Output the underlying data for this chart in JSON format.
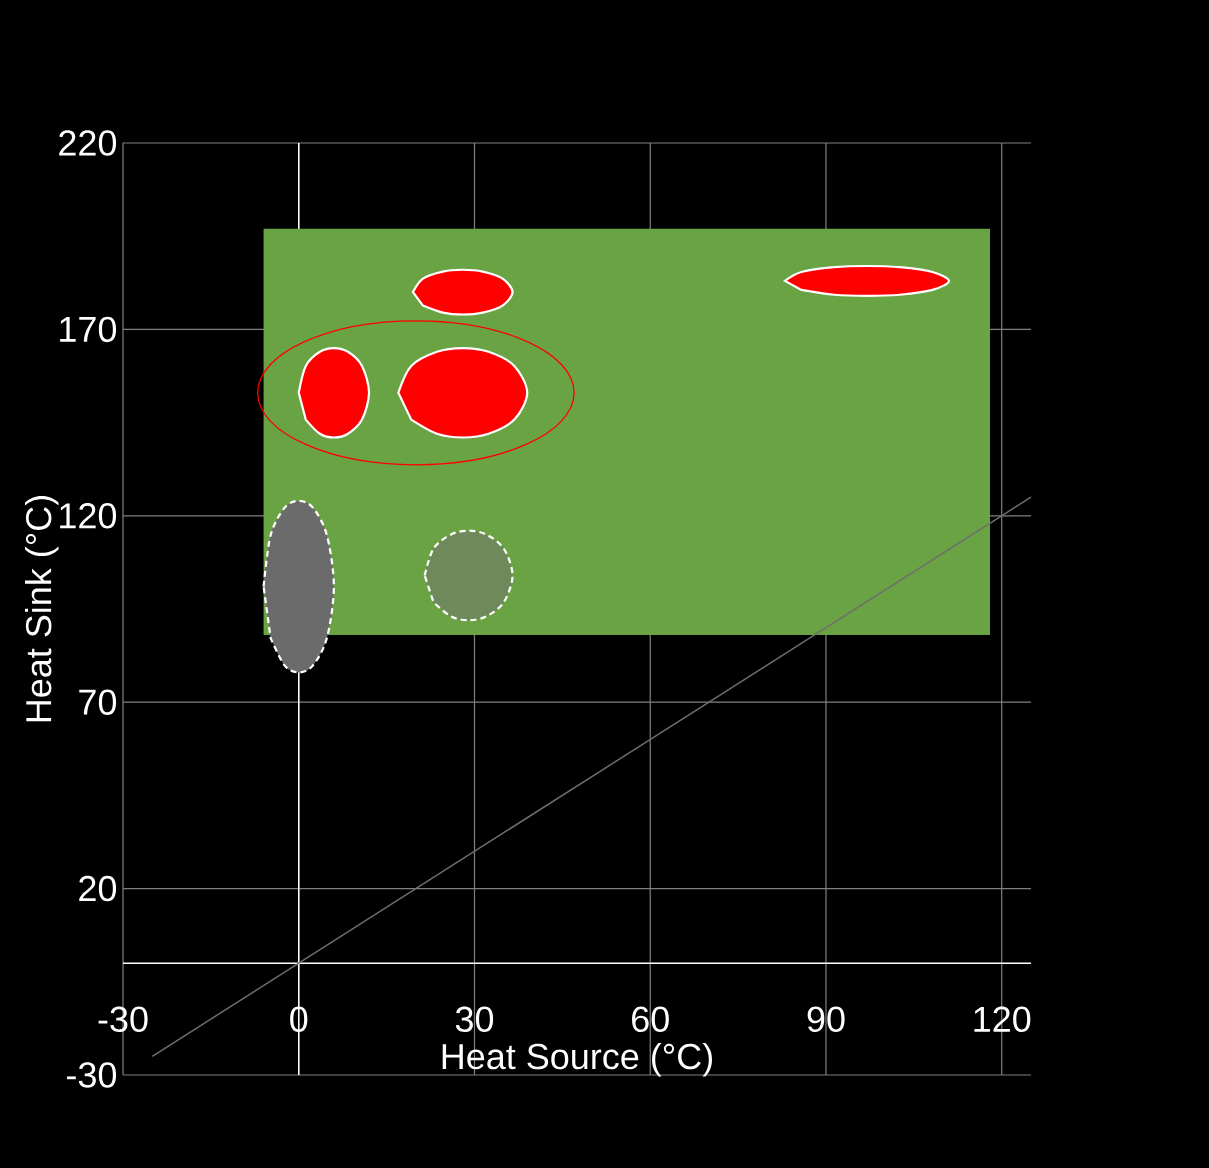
{
  "chart_data": {
    "type": "area",
    "xlabel": "Heat Source (°C)",
    "ylabel": "Heat Sink (°C)",
    "xlim": [
      -30,
      125
    ],
    "ylim": [
      -30,
      220
    ],
    "xticks": [
      -30,
      0,
      30,
      60,
      90,
      120
    ],
    "yticks": [
      -30,
      20,
      70,
      120,
      170,
      220
    ],
    "grid": true,
    "series": [
      {
        "color": "#6aa343",
        "x": [
          -6,
          118,
          118,
          -6
        ],
        "values": [
          197,
          197,
          88,
          88
        ]
      },
      {
        "type": "line",
        "color": "#6e6e6e",
        "x": [
          -25,
          125
        ],
        "values": [
          -25,
          125
        ]
      },
      {
        "color": "#ff0000",
        "line_style": "solid",
        "x": [
          19.5,
          21.2,
          24.6,
          28,
          31.4,
          34.8,
          36.5,
          34.8,
          31.4,
          28,
          24.6,
          21.2
        ],
        "values": [
          180,
          183.6,
          185.5,
          186,
          185.5,
          183.6,
          180,
          176.4,
          174.5,
          174,
          174.5,
          176.4
        ]
      },
      {
        "color": "#ff0000",
        "line_style": "solid",
        "x": [
          83,
          85.8,
          91.4,
          97,
          102.6,
          108.2,
          111,
          108.2,
          102.6,
          97,
          91.4,
          85.8
        ],
        "values": [
          183,
          185.4,
          186.7,
          187,
          186.7,
          185.4,
          183,
          180.6,
          179.3,
          179,
          179.3,
          180.6
        ]
      },
      {
        "color": "#ff0000",
        "line_style": "solid",
        "x": [
          0,
          1.2,
          3.6,
          6,
          8.4,
          10.8,
          12,
          10.8,
          8.4,
          6,
          3.6,
          1.2
        ],
        "values": [
          153,
          160.2,
          164,
          165,
          164,
          160.2,
          153,
          145.8,
          142,
          141,
          142,
          145.8
        ]
      },
      {
        "color": "#ff0000",
        "line_style": "solid",
        "x": [
          17,
          19.2,
          23.6,
          28,
          32.4,
          36.8,
          39,
          36.8,
          32.4,
          28,
          23.6,
          19.2
        ],
        "values": [
          153,
          160.2,
          164,
          165,
          164,
          160.2,
          153,
          145.8,
          142,
          141,
          142,
          145.8
        ]
      },
      {
        "color": "#6b6b6b",
        "line_style": "dashed",
        "x": [
          -6,
          -4.8,
          -2.4,
          0,
          2.4,
          4.8,
          6,
          4.8,
          2.4,
          0,
          -2.4,
          -4.8
        ],
        "values": [
          101,
          114.8,
          122.2,
          124,
          122.2,
          114.8,
          101,
          87.2,
          79.8,
          78,
          79.8,
          87.2
        ]
      },
      {
        "color": "#6f8a5a",
        "line_style": "dashed",
        "x": [
          21.5,
          23,
          26,
          29,
          32,
          35,
          36.5,
          35,
          32,
          29,
          26,
          23
        ],
        "values": [
          104,
          111.2,
          115,
          116,
          115,
          111.2,
          104,
          96.8,
          93,
          92,
          93,
          96.8
        ]
      }
    ]
  }
}
